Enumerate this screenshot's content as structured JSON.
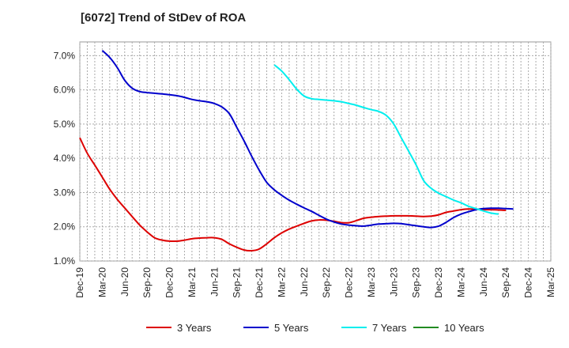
{
  "chart_data": {
    "type": "line",
    "title": "[6072]  Trend of StDev of ROA",
    "xlabel": "",
    "ylabel": "",
    "x_ticks": [
      "Dec-19",
      "Mar-20",
      "Jun-20",
      "Sep-20",
      "Dec-20",
      "Mar-21",
      "Jun-21",
      "Sep-21",
      "Dec-21",
      "Mar-22",
      "Jun-22",
      "Sep-22",
      "Dec-22",
      "Mar-23",
      "Jun-23",
      "Sep-23",
      "Dec-23",
      "Mar-24",
      "Jun-24",
      "Sep-24",
      "Dec-24",
      "Mar-25"
    ],
    "y_ticks": [
      "1.0%",
      "2.0%",
      "3.0%",
      "4.0%",
      "5.0%",
      "6.0%",
      "7.0%"
    ],
    "ylim": [
      1.0,
      7.4
    ],
    "grid": true,
    "legend_position": "bottom",
    "series": [
      {
        "name": "3 Years",
        "color": "#dd0000",
        "points": [
          [
            0,
            4.6
          ],
          [
            0.33,
            4.15
          ],
          [
            0.67,
            3.8
          ],
          [
            1,
            3.45
          ],
          [
            1.33,
            3.1
          ],
          [
            1.67,
            2.8
          ],
          [
            2,
            2.55
          ],
          [
            2.33,
            2.3
          ],
          [
            2.67,
            2.05
          ],
          [
            3,
            1.85
          ],
          [
            3.33,
            1.68
          ],
          [
            3.67,
            1.61
          ],
          [
            4,
            1.58
          ],
          [
            4.33,
            1.58
          ],
          [
            4.67,
            1.61
          ],
          [
            5,
            1.65
          ],
          [
            5.33,
            1.67
          ],
          [
            5.67,
            1.68
          ],
          [
            6,
            1.68
          ],
          [
            6.33,
            1.63
          ],
          [
            6.67,
            1.5
          ],
          [
            7,
            1.4
          ],
          [
            7.33,
            1.32
          ],
          [
            7.67,
            1.3
          ],
          [
            8,
            1.35
          ],
          [
            8.33,
            1.5
          ],
          [
            8.67,
            1.68
          ],
          [
            9,
            1.82
          ],
          [
            9.33,
            1.93
          ],
          [
            9.67,
            2.02
          ],
          [
            10,
            2.1
          ],
          [
            10.33,
            2.17
          ],
          [
            10.67,
            2.2
          ],
          [
            11,
            2.19
          ],
          [
            11.33,
            2.16
          ],
          [
            11.67,
            2.12
          ],
          [
            12,
            2.12
          ],
          [
            12.33,
            2.18
          ],
          [
            12.67,
            2.25
          ],
          [
            13,
            2.28
          ],
          [
            13.33,
            2.3
          ],
          [
            13.67,
            2.31
          ],
          [
            14,
            2.32
          ],
          [
            14.33,
            2.32
          ],
          [
            14.67,
            2.32
          ],
          [
            15,
            2.31
          ],
          [
            15.33,
            2.3
          ],
          [
            15.67,
            2.31
          ],
          [
            16,
            2.35
          ],
          [
            16.33,
            2.42
          ],
          [
            16.67,
            2.46
          ],
          [
            17,
            2.5
          ],
          [
            17.33,
            2.52
          ],
          [
            17.67,
            2.51
          ],
          [
            18,
            2.5
          ],
          [
            18.33,
            2.5
          ],
          [
            18.67,
            2.49
          ],
          [
            19,
            2.48
          ]
        ]
      },
      {
        "name": "5 Years",
        "color": "#0000cc",
        "points": [
          [
            1,
            7.15
          ],
          [
            1.33,
            6.95
          ],
          [
            1.67,
            6.65
          ],
          [
            2,
            6.28
          ],
          [
            2.33,
            6.05
          ],
          [
            2.67,
            5.95
          ],
          [
            3,
            5.92
          ],
          [
            3.33,
            5.9
          ],
          [
            3.67,
            5.88
          ],
          [
            4,
            5.86
          ],
          [
            4.33,
            5.83
          ],
          [
            4.67,
            5.78
          ],
          [
            5,
            5.72
          ],
          [
            5.33,
            5.68
          ],
          [
            5.67,
            5.65
          ],
          [
            6,
            5.6
          ],
          [
            6.33,
            5.5
          ],
          [
            6.67,
            5.3
          ],
          [
            7,
            4.9
          ],
          [
            7.33,
            4.5
          ],
          [
            7.67,
            4.05
          ],
          [
            8,
            3.65
          ],
          [
            8.33,
            3.3
          ],
          [
            8.67,
            3.08
          ],
          [
            9,
            2.92
          ],
          [
            9.33,
            2.78
          ],
          [
            9.67,
            2.66
          ],
          [
            10,
            2.55
          ],
          [
            10.33,
            2.45
          ],
          [
            10.67,
            2.33
          ],
          [
            11,
            2.22
          ],
          [
            11.33,
            2.14
          ],
          [
            11.67,
            2.08
          ],
          [
            12,
            2.05
          ],
          [
            12.33,
            2.03
          ],
          [
            12.67,
            2.02
          ],
          [
            13,
            2.05
          ],
          [
            13.33,
            2.08
          ],
          [
            13.67,
            2.09
          ],
          [
            14,
            2.1
          ],
          [
            14.33,
            2.09
          ],
          [
            14.67,
            2.06
          ],
          [
            15,
            2.03
          ],
          [
            15.33,
            2.0
          ],
          [
            15.67,
            1.98
          ],
          [
            16,
            2.02
          ],
          [
            16.33,
            2.13
          ],
          [
            16.67,
            2.27
          ],
          [
            17,
            2.37
          ],
          [
            17.33,
            2.44
          ],
          [
            17.67,
            2.5
          ],
          [
            18,
            2.53
          ],
          [
            18.33,
            2.54
          ],
          [
            18.67,
            2.54
          ],
          [
            19,
            2.53
          ],
          [
            19.33,
            2.52
          ]
        ]
      },
      {
        "name": "7 Years",
        "color": "#00eeee",
        "points": [
          [
            8.67,
            6.73
          ],
          [
            9,
            6.55
          ],
          [
            9.33,
            6.3
          ],
          [
            9.67,
            6.02
          ],
          [
            10,
            5.82
          ],
          [
            10.33,
            5.74
          ],
          [
            10.67,
            5.72
          ],
          [
            11,
            5.7
          ],
          [
            11.33,
            5.68
          ],
          [
            11.67,
            5.65
          ],
          [
            12,
            5.6
          ],
          [
            12.33,
            5.55
          ],
          [
            12.67,
            5.48
          ],
          [
            13,
            5.42
          ],
          [
            13.33,
            5.37
          ],
          [
            13.67,
            5.25
          ],
          [
            14,
            5.0
          ],
          [
            14.33,
            4.6
          ],
          [
            14.67,
            4.2
          ],
          [
            15,
            3.8
          ],
          [
            15.33,
            3.35
          ],
          [
            15.67,
            3.12
          ],
          [
            16,
            2.98
          ],
          [
            16.33,
            2.88
          ],
          [
            16.67,
            2.78
          ],
          [
            17,
            2.7
          ],
          [
            17.33,
            2.6
          ],
          [
            17.67,
            2.53
          ],
          [
            18,
            2.46
          ],
          [
            18.33,
            2.4
          ],
          [
            18.67,
            2.37
          ]
        ]
      },
      {
        "name": "10 Years",
        "color": "#228b22",
        "points": []
      }
    ]
  }
}
